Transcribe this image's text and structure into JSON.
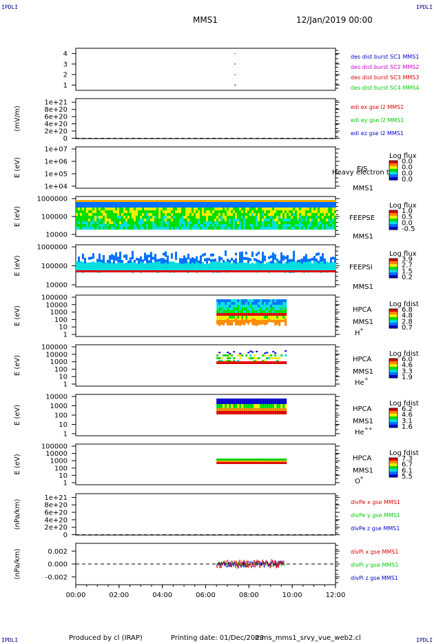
{
  "page": {
    "corner_label": "IPDLI",
    "spacecraft": "MMS1",
    "datetime": "12/Jan/2019 00:00",
    "footer": {
      "produced_by": "Produced by cl (IRAP)",
      "printing_date": "Printing date: 01/Dec/2023",
      "filename": "mms_mms1_srvy_vue_web2.cl"
    }
  },
  "chart_data": [
    {
      "type": "line",
      "panel": "burst",
      "ylim": [
        0.5,
        4.5
      ],
      "yticks": [
        "1",
        "2",
        "3",
        "4"
      ],
      "legend": [
        {
          "label": "des dist burst SC1 MMS1",
          "color": "#0000cc"
        },
        {
          "label": "des dist burst SC2 MMS2",
          "color": "#cc00cc"
        },
        {
          "label": "des dist burst SC3 MMS3",
          "color": "#dd0000"
        },
        {
          "label": "des dist burst SC4 MMS4",
          "color": "#00cc00"
        }
      ],
      "series": [
        {
          "name": "des dist burst SC1 MMS1",
          "x": [
            "07:20"
          ],
          "values": [
            1
          ]
        },
        {
          "name": "des dist burst SC2 MMS2",
          "x": [
            "07:20"
          ],
          "values": [
            2
          ]
        },
        {
          "name": "des dist burst SC3 MMS3",
          "x": [
            "07:20"
          ],
          "values": [
            3
          ]
        },
        {
          "name": "des dist burst SC4 MMS4",
          "x": [
            "07:20"
          ],
          "values": [
            4
          ]
        }
      ]
    },
    {
      "type": "line",
      "panel": "edi",
      "ylabel": "(mV/m)",
      "ylim": [
        -1e+19,
        1.1e+21
      ],
      "yticks": [
        "1e+21",
        "8e+20",
        "6e+20",
        "4e+20",
        "2e+20",
        "0"
      ],
      "zero_line": true,
      "legend": [
        {
          "label": "edi ex gse l2 MMS1",
          "color": "#dd0000"
        },
        {
          "label": "edi ey gse l2 MMS1",
          "color": "#00cc00"
        },
        {
          "label": "edi ez gse l2 MMS1",
          "color": "#0000cc"
        }
      ]
    },
    {
      "type": "heatmap",
      "panel": "eis",
      "ylabel": "E (eV)",
      "yticks": [
        "1e+07",
        "1e+06",
        "1e+05",
        "1e+04"
      ],
      "instrument": "EIS",
      "instrument_sub": "MMS1",
      "overlay_text": "Heavy electron tot",
      "cbar_title": "Log flux",
      "cbar_ticks": [
        "0.0",
        "0.0",
        "0.0",
        "0.0"
      ]
    },
    {
      "type": "heatmap",
      "panel": "feepse",
      "ylabel": "E (eV)",
      "yticks": [
        "1000000",
        "100000",
        "10000"
      ],
      "instrument": "FEEPSE",
      "instrument_sub": "MMS1",
      "cbar_title": "Log flux",
      "cbar_ticks": [
        "1.0",
        "0.5",
        "0.0",
        "-0.5"
      ],
      "coverage": [
        "00:00",
        "12:00"
      ]
    },
    {
      "type": "heatmap",
      "panel": "feepsi",
      "ylabel": "E (eV)",
      "yticks": [
        "1000000",
        "100000",
        "10000"
      ],
      "instrument": "FEEPSI",
      "instrument_sub": "MMS1",
      "cbar_title": "Log flux",
      "cbar_ticks": [
        "3.9",
        "2.7",
        "1.5",
        "0.2"
      ],
      "coverage": [
        "00:00",
        "12:00"
      ]
    },
    {
      "type": "heatmap",
      "panel": "hpca_h",
      "ylabel": "E (eV)",
      "yticks": [
        "100000",
        "10000",
        "1000",
        "100",
        "10",
        "1"
      ],
      "instrument": "HPCA",
      "instrument_sub": "MMS1",
      "species": "H",
      "species_charge": "+",
      "cbar_title": "Log fdist",
      "cbar_ticks": [
        "6.8",
        "4.8",
        "2.8",
        "0.7"
      ],
      "coverage": [
        "06:30",
        "09:40"
      ]
    },
    {
      "type": "heatmap",
      "panel": "hpca_he",
      "ylabel": "E (eV)",
      "yticks": [
        "100000",
        "10000",
        "1000",
        "100",
        "10",
        "1"
      ],
      "instrument": "HPCA",
      "instrument_sub": "MMS1",
      "species": "He",
      "species_charge": "+",
      "cbar_title": "Log fdist",
      "cbar_ticks": [
        "6.0",
        "4.6",
        "3.3",
        "1.9"
      ],
      "coverage": [
        "06:30",
        "09:40"
      ]
    },
    {
      "type": "heatmap",
      "panel": "hpca_hepp",
      "ylabel": "E (eV)",
      "yticks": [
        "10000",
        "1000",
        "100",
        "10",
        "1"
      ],
      "instrument": "HPCA",
      "instrument_sub": "MMS1",
      "species": "He",
      "species_charge": "++",
      "cbar_title": "Log fdist",
      "cbar_ticks": [
        "6.2",
        "4.6",
        "3.1",
        "1.6"
      ],
      "coverage": [
        "06:30",
        "09:40"
      ]
    },
    {
      "type": "heatmap",
      "panel": "hpca_o",
      "ylabel": "E (eV)",
      "yticks": [
        "100000",
        "10000",
        "1000",
        "100",
        "10",
        "1"
      ],
      "instrument": "HPCA",
      "instrument_sub": "MMS1",
      "species": "O",
      "species_charge": "+",
      "cbar_title": "Log fdist",
      "cbar_ticks": [
        "7.3",
        "6.7",
        "6.1",
        "5.5"
      ],
      "coverage": [
        "06:30",
        "09:40"
      ]
    },
    {
      "type": "line",
      "panel": "divpe",
      "ylabel": "(nPa/km)",
      "ylim": [
        -1e+19,
        1.1e+21
      ],
      "yticks": [
        "1e+21",
        "8e+20",
        "6e+20",
        "4e+20",
        "2e+20",
        "0"
      ],
      "zero_line": true,
      "legend": [
        {
          "label": "divPe x gse MMS1",
          "color": "#dd0000"
        },
        {
          "label": "divPe y gse MMS1",
          "color": "#00cc00"
        },
        {
          "label": "divPe z gse MMS1",
          "color": "#0000cc"
        }
      ]
    },
    {
      "type": "line",
      "panel": "divpi",
      "ylabel": "(nPa/km)",
      "ylim": [
        -0.0032,
        0.0032
      ],
      "yticks": [
        "0.002",
        "0.000",
        "-0.002"
      ],
      "ytick_values": [
        0.002,
        0.0,
        -0.002
      ],
      "zero_line": true,
      "legend": [
        {
          "label": "divPi x gse MMS1",
          "color": "#dd0000"
        },
        {
          "label": "divPi y gse MMS1",
          "color": "#00cc00"
        },
        {
          "label": "divPi z gse MMS1",
          "color": "#0000cc"
        }
      ],
      "coverage": [
        "06:30",
        "09:40"
      ]
    }
  ],
  "xaxis": {
    "ticks": [
      "00:00",
      "02:00",
      "04:00",
      "06:00",
      "08:00",
      "10:00",
      "12:00"
    ],
    "xlim": [
      "00:00",
      "12:00"
    ]
  }
}
